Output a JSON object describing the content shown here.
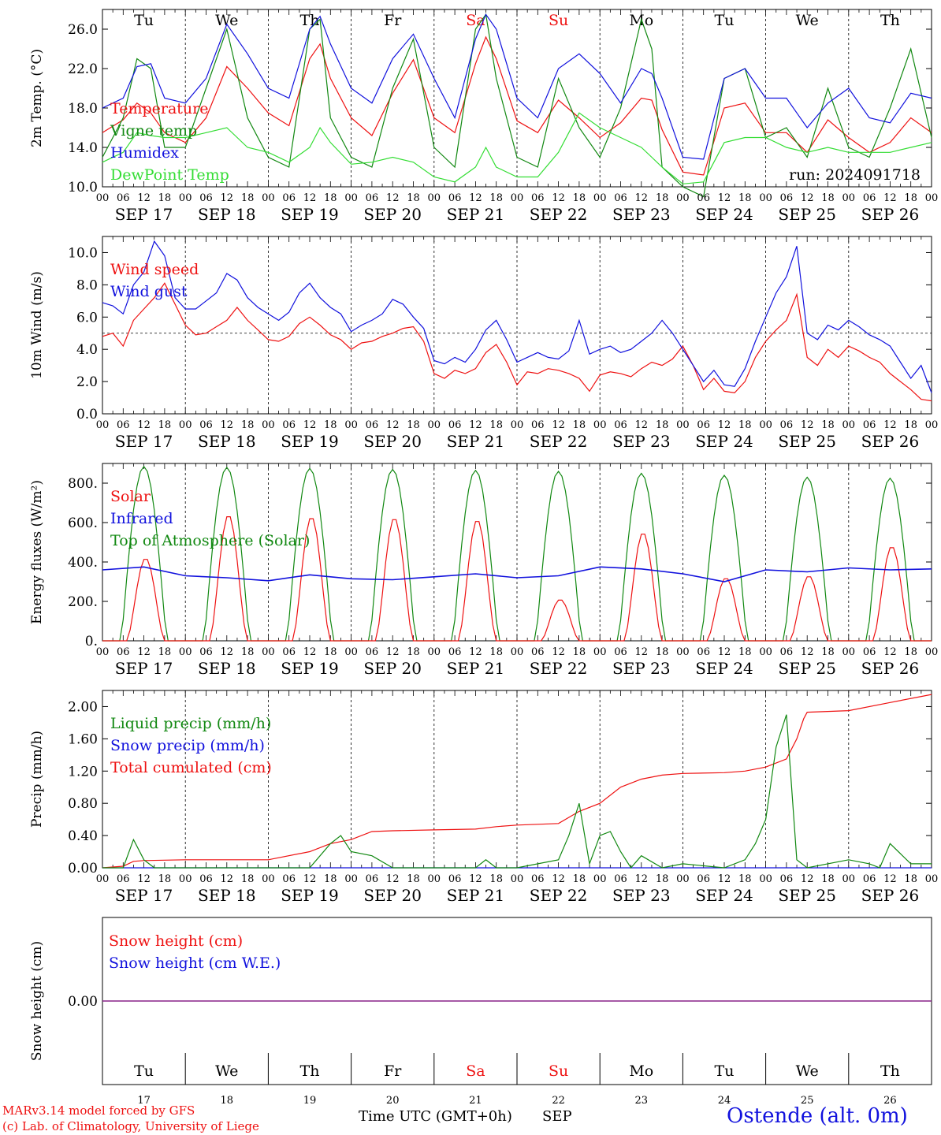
{
  "colors": {
    "red": "#ee1111",
    "green": "#118811",
    "blue": "#1111dd",
    "lightgreen": "#33dd33",
    "purple": "#882288",
    "text": "#000000"
  },
  "days": [
    "Tu",
    "We",
    "Th",
    "Fr",
    "Sa",
    "Su",
    "Mo",
    "Tu",
    "We",
    "Th"
  ],
  "weekend_days": [
    4,
    5
  ],
  "dates": [
    "SEP 17",
    "SEP 18",
    "SEP 19",
    "SEP 20",
    "SEP 21",
    "SEP 22",
    "SEP 23",
    "SEP 24",
    "SEP 25",
    "SEP 26"
  ],
  "day_numbers": [
    "17",
    "18",
    "19",
    "20",
    "21",
    "22",
    "23",
    "24",
    "25",
    "26"
  ],
  "hour_labels": [
    "00",
    "06",
    "12",
    "18"
  ],
  "final_hour_label": "00",
  "footer": {
    "credit_1": "MARv3.14 model forced by GFS",
    "credit_2": "(c) Lab. of Climatology, University of Liege",
    "axis_title": "Time UTC (GMT+0h)",
    "month": "SEP",
    "station": "Ostende (alt. 0m)"
  },
  "chart_data": [
    {
      "type": "line",
      "ylabel": "2m Temp. (°C)",
      "ylim": [
        10,
        28
      ],
      "yticks": [
        "10.0",
        "14.0",
        "18.0",
        "22.0",
        "26.0"
      ],
      "annotation": "run: 2024091718",
      "legend": [
        "Temperature",
        "Vigne temp",
        "Humidex",
        "DewPoint Temp"
      ],
      "show_days": true,
      "x": [
        0,
        6,
        10,
        14,
        18,
        24,
        30,
        36,
        42,
        48,
        54,
        60,
        63,
        66,
        72,
        78,
        84,
        90,
        96,
        102,
        108,
        111,
        114,
        120,
        126,
        132,
        138,
        144,
        150,
        156,
        159,
        162,
        168,
        174,
        180,
        186,
        192,
        198,
        204,
        210,
        216,
        222,
        228,
        234,
        240
      ],
      "series": [
        {
          "name": "Temperature",
          "color": "red",
          "values": [
            15.5,
            16.8,
            18.5,
            17.5,
            15.5,
            14.5,
            17,
            22.2,
            20,
            17.5,
            16.2,
            23,
            24.5,
            21,
            17,
            15.2,
            19.5,
            22.9,
            17,
            15.5,
            22.5,
            25.2,
            23,
            16.7,
            15.5,
            18.8,
            17,
            15,
            16.5,
            19,
            18.8,
            15.8,
            11.5,
            11.2,
            18,
            18.5,
            15.5,
            15.5,
            13.5,
            16.8,
            15,
            13.5,
            14.5,
            17,
            15.5
          ]
        },
        {
          "name": "Vigne temp",
          "color": "green",
          "values": [
            13,
            17,
            23,
            22,
            14,
            14,
            20,
            26,
            17,
            13,
            12,
            26,
            27,
            17,
            13,
            12,
            20,
            25,
            14,
            12,
            26,
            27.5,
            21,
            13,
            12,
            21,
            16,
            13,
            18,
            27,
            24,
            12,
            10,
            9,
            21,
            22,
            15,
            16,
            13,
            20,
            14,
            13,
            18,
            24,
            15
          ]
        },
        {
          "name": "Humidex",
          "color": "blue",
          "values": [
            18,
            19,
            22.2,
            22.5,
            19,
            18.5,
            21,
            26.5,
            23.5,
            20,
            19,
            26,
            27.3,
            24.5,
            20,
            18.5,
            23,
            25.5,
            21,
            17,
            25,
            27.5,
            26,
            19,
            17,
            22,
            23.5,
            21.5,
            18.5,
            22,
            21.5,
            19,
            13,
            12.8,
            21,
            22,
            19,
            19,
            16,
            18.5,
            20,
            17,
            16.5,
            19.5,
            19
          ]
        },
        {
          "name": "DewPoint Temp",
          "color": "lightgreen",
          "values": [
            12.5,
            13.5,
            15.5,
            15.2,
            15,
            15,
            15.5,
            16,
            14,
            13.5,
            12.5,
            14,
            16,
            14.5,
            12.3,
            12.5,
            13,
            12.5,
            11,
            10.5,
            12,
            14,
            12,
            11,
            11,
            13.5,
            17.5,
            16,
            15,
            14,
            13,
            12,
            10.3,
            10.5,
            14.5,
            15,
            15,
            14,
            13.5,
            14,
            13.5,
            13.5,
            13.5,
            14,
            14.5
          ]
        }
      ]
    },
    {
      "type": "line",
      "ylabel": "10m Wind (m/s)",
      "ylim": [
        0,
        11
      ],
      "yticks": [
        "0.0",
        "2.0",
        "4.0",
        "6.0",
        "8.0",
        "10.0"
      ],
      "ref_line": 5,
      "legend": [
        "Wind speed",
        "Wind gust"
      ],
      "x": [
        0,
        3,
        6,
        9,
        12,
        15,
        18,
        21,
        24,
        27,
        30,
        33,
        36,
        39,
        42,
        45,
        48,
        51,
        54,
        57,
        60,
        63,
        66,
        69,
        72,
        75,
        78,
        81,
        84,
        87,
        90,
        93,
        96,
        99,
        102,
        105,
        108,
        111,
        114,
        117,
        120,
        123,
        126,
        129,
        132,
        135,
        138,
        141,
        144,
        147,
        150,
        153,
        156,
        159,
        162,
        165,
        168,
        171,
        174,
        177,
        180,
        183,
        186,
        189,
        192,
        195,
        198,
        201,
        204,
        207,
        210,
        213,
        216,
        219,
        222,
        225,
        228,
        231,
        234,
        237,
        240
      ],
      "series": [
        {
          "name": "Wind speed",
          "color": "red",
          "values": [
            4.8,
            5.0,
            4.2,
            5.8,
            6.5,
            7.2,
            8.1,
            6.8,
            5.5,
            4.9,
            5.0,
            5.4,
            5.8,
            6.6,
            5.8,
            5.2,
            4.6,
            4.5,
            4.8,
            5.6,
            6.0,
            5.5,
            4.9,
            4.6,
            4.0,
            4.4,
            4.5,
            4.8,
            5.0,
            5.3,
            5.4,
            4.5,
            2.5,
            2.2,
            2.7,
            2.5,
            2.8,
            3.8,
            4.3,
            3.2,
            1.8,
            2.6,
            2.5,
            2.8,
            2.7,
            2.5,
            2.2,
            1.4,
            2.4,
            2.6,
            2.5,
            2.3,
            2.8,
            3.2,
            3.0,
            3.4,
            4.2,
            3.0,
            1.5,
            2.2,
            1.4,
            1.3,
            2.0,
            3.5,
            4.5,
            5.2,
            5.8,
            7.4,
            3.5,
            3.0,
            4.0,
            3.5,
            4.2,
            3.9,
            3.5,
            3.2,
            2.5,
            2.0,
            1.5,
            0.9,
            0.8
          ]
        },
        {
          "name": "Wind gust",
          "color": "blue",
          "values": [
            6.9,
            6.7,
            6.2,
            8.0,
            8.8,
            10.7,
            9.8,
            7.2,
            6.5,
            6.5,
            7.0,
            7.5,
            8.7,
            8.3,
            7.2,
            6.6,
            6.2,
            5.8,
            6.3,
            7.5,
            8.1,
            7.2,
            6.6,
            6.2,
            5.1,
            5.5,
            5.8,
            6.2,
            7.1,
            6.8,
            6.0,
            5.3,
            3.3,
            3.1,
            3.5,
            3.2,
            4.0,
            5.2,
            5.8,
            4.6,
            3.2,
            3.5,
            3.8,
            3.5,
            3.4,
            3.9,
            5.8,
            3.7,
            4.0,
            4.2,
            3.8,
            4.0,
            4.5,
            5.0,
            5.8,
            5.0,
            4.0,
            3.0,
            2.0,
            2.7,
            1.8,
            1.7,
            2.8,
            4.5,
            6.0,
            7.5,
            8.5,
            10.4,
            5.0,
            4.6,
            5.5,
            5.2,
            5.8,
            5.4,
            4.9,
            4.6,
            4.2,
            3.2,
            2.2,
            3.0,
            1.3
          ]
        }
      ]
    },
    {
      "type": "line",
      "ylabel": "Energy fluxes (W/m²)",
      "ylim": [
        0,
        900
      ],
      "yticks": [
        "0.",
        "200.",
        "400.",
        "600.",
        "800."
      ],
      "legend": [
        "Solar",
        "Infrared",
        "Top of Atmosphere (Solar)"
      ],
      "infrared": {
        "name": "Infrared",
        "color": "blue",
        "x": [
          0,
          12,
          24,
          36,
          48,
          60,
          72,
          84,
          96,
          108,
          120,
          132,
          144,
          156,
          168,
          180,
          192,
          204,
          216,
          228,
          240
        ],
        "values": [
          360,
          375,
          330,
          320,
          305,
          335,
          315,
          310,
          325,
          340,
          320,
          330,
          375,
          365,
          340,
          300,
          360,
          350,
          370,
          360,
          365
        ]
      },
      "toa": {
        "name": "Top of Atmosphere (Solar)",
        "color": "green",
        "sunrise_hour": 5.5,
        "sunset_hour": 18.5,
        "peaks": [
          885,
          880,
          875,
          870,
          865,
          860,
          850,
          840,
          830,
          825
        ]
      },
      "solar": {
        "name": "Solar",
        "color": "red",
        "day_peaks": [
          420,
          640,
          630,
          625,
          615,
          210,
          550,
          320,
          330,
          480
        ]
      }
    },
    {
      "type": "line",
      "ylabel": "Precip (mm/h)",
      "ylim": [
        0,
        2.2
      ],
      "yticks": [
        "0.00",
        "0.40",
        "0.80",
        "1.20",
        "1.60",
        "2.00"
      ],
      "legend": [
        "Liquid precip (mm/h)",
        "Snow precip (mm/h)",
        "Total cumulated (cm)"
      ],
      "series": [
        {
          "name": "Total cumulated (cm)",
          "color": "red",
          "x": [
            0,
            6,
            9,
            12,
            24,
            36,
            48,
            60,
            66,
            72,
            78,
            84,
            96,
            108,
            114,
            120,
            132,
            138,
            144,
            150,
            156,
            162,
            168,
            180,
            186,
            192,
            198,
            201,
            203,
            204,
            216,
            228,
            240
          ],
          "values": [
            0,
            0.02,
            0.08,
            0.09,
            0.1,
            0.1,
            0.1,
            0.2,
            0.3,
            0.35,
            0.45,
            0.46,
            0.47,
            0.48,
            0.51,
            0.53,
            0.55,
            0.7,
            0.8,
            1.0,
            1.1,
            1.15,
            1.17,
            1.18,
            1.2,
            1.25,
            1.35,
            1.6,
            1.85,
            1.93,
            1.95,
            2.05,
            2.15
          ]
        },
        {
          "name": "Liquid precip (mm/h)",
          "color": "green",
          "x": [
            0,
            6,
            9,
            12,
            15,
            24,
            60,
            66,
            69,
            72,
            78,
            84,
            96,
            108,
            111,
            114,
            120,
            132,
            135,
            138,
            141,
            144,
            147,
            150,
            153,
            156,
            162,
            168,
            180,
            186,
            189,
            192,
            195,
            198,
            201,
            204,
            216,
            222,
            225,
            228,
            234,
            240
          ],
          "values": [
            0,
            0,
            0.35,
            0.1,
            0,
            0,
            0,
            0.3,
            0.4,
            0.2,
            0.15,
            0,
            0,
            0,
            0.1,
            0,
            0,
            0.1,
            0.4,
            0.8,
            0.05,
            0.4,
            0.45,
            0.2,
            0,
            0.15,
            0,
            0.05,
            0,
            0.1,
            0.3,
            0.6,
            1.5,
            1.9,
            0.1,
            0,
            0.1,
            0.05,
            0,
            0.3,
            0.05,
            0.05
          ]
        }
      ]
    },
    {
      "type": "line",
      "ylabel": "Snow height (cm)",
      "ylim": [
        -1,
        1
      ],
      "yticks": [
        "0.00"
      ],
      "legend": [
        "Snow height (cm)",
        "Snow height (cm W.E.)"
      ],
      "legend_colors": [
        "red",
        "blue"
      ],
      "series": [
        {
          "name": "Snow height (cm)",
          "color": "purple",
          "x": [
            0,
            240
          ],
          "values": [
            0,
            0
          ]
        }
      ]
    }
  ]
}
